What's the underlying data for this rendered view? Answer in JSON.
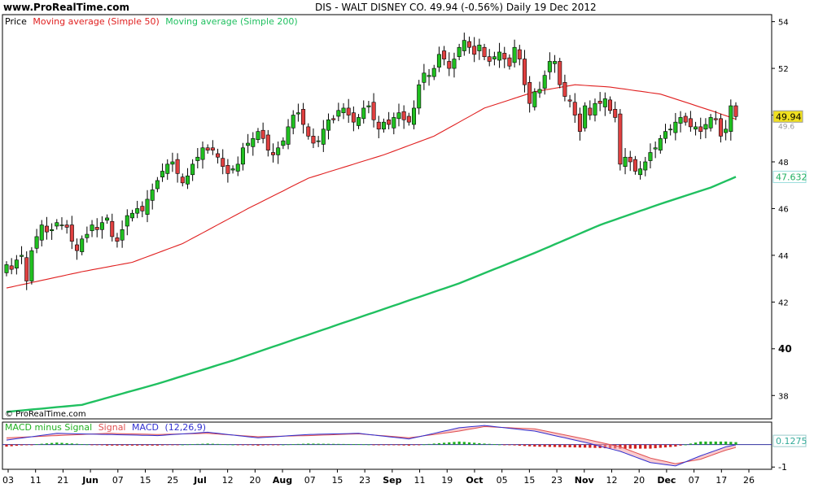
{
  "header": {
    "site": "www.ProRealTime.com",
    "title": "DIS - WALT DISNEY CO.     49.94  (-0.56%)     Daily  19 Dec 2012"
  },
  "watermark": "© ProRealTime.com",
  "colors": {
    "sma50": "#e02020",
    "sma200": "#20c060",
    "up_candle": "#20c020",
    "down_candle": "#e04040",
    "macd_line": "#3030d0",
    "signal_line": "#e05050",
    "hist_pos": "#20b020",
    "hist_neg": "#d02020",
    "last_price_bg": "#f0e020",
    "sma200_label_color": "#20b060"
  },
  "chart_data": [
    {
      "type": "candlestick",
      "legend": [
        {
          "name": "Price",
          "color": "#000000"
        },
        {
          "name": "Moving average (Simple 50)",
          "color": "#e02020"
        },
        {
          "name": "Moving average (Simple 200)",
          "color": "#20c060"
        }
      ],
      "ylim": [
        37,
        54.3
      ],
      "yticks": [
        38,
        40,
        42,
        44,
        46,
        48,
        50,
        52,
        54
      ],
      "last_price_label": "49.94",
      "sma200_label": "47.632",
      "sma50_label": "49.6",
      "x_tick_labels": [
        "03",
        "11",
        "21",
        "Jun",
        "07",
        "15",
        "25",
        "Jul",
        "12",
        "20",
        "Aug",
        "07",
        "15",
        "23",
        "Sep",
        "11",
        "19",
        "Oct",
        "05",
        "15",
        "23",
        "Nov",
        "12",
        "20",
        "Dec",
        "07",
        "17",
        "26"
      ],
      "closes": [
        43.6,
        43.4,
        43.8,
        44.0,
        42.9,
        44.2,
        44.8,
        45.3,
        45.0,
        45.1,
        45.4,
        45.3,
        45.2,
        44.6,
        44.2,
        44.7,
        44.9,
        45.3,
        45.1,
        45.4,
        45.6,
        44.8,
        44.6,
        45.1,
        45.7,
        45.8,
        46.0,
        45.9,
        46.4,
        46.8,
        47.2,
        47.6,
        47.9,
        48.0,
        47.5,
        47.1,
        47.4,
        47.9,
        48.2,
        48.6,
        48.5,
        48.5,
        48.2,
        47.8,
        47.5,
        47.7,
        47.9,
        48.6,
        48.8,
        49.0,
        49.3,
        49.0,
        48.5,
        48.3,
        48.6,
        48.9,
        49.5,
        50.0,
        50.1,
        49.6,
        49.1,
        48.8,
        48.9,
        49.4,
        49.8,
        49.8,
        50.2,
        50.3,
        50.0,
        49.7,
        49.9,
        50.3,
        50.4,
        49.8,
        49.4,
        49.7,
        49.6,
        49.9,
        50.1,
        49.8,
        49.7,
        50.3,
        51.3,
        51.8,
        51.7,
        52.0,
        52.6,
        52.4,
        52.0,
        52.4,
        52.9,
        53.2,
        52.9,
        52.6,
        53.0,
        52.5,
        52.3,
        52.5,
        52.7,
        52.4,
        52.1,
        52.9,
        52.4,
        51.3,
        50.5,
        51.0,
        51.1,
        51.7,
        52.3,
        52.3,
        51.3,
        50.8,
        50.6,
        50.0,
        49.3,
        50.4,
        50.0,
        50.5,
        50.5,
        50.7,
        50.2,
        49.9,
        47.9,
        48.2,
        48.0,
        47.6,
        47.7,
        48.0,
        48.4,
        48.6,
        49.0,
        49.3,
        49.4,
        49.7,
        49.9,
        49.7,
        49.5,
        49.5,
        49.3,
        49.6,
        49.9,
        49.8,
        49.1,
        49.4,
        50.4,
        49.94
      ],
      "sma50": [
        null,
        null,
        null,
        null,
        null,
        null,
        null,
        null,
        null,
        null,
        null,
        null,
        null,
        null,
        null,
        null,
        null,
        null,
        null,
        null,
        null,
        null,
        null,
        null,
        null,
        null,
        null,
        null,
        null,
        null,
        null,
        null,
        null,
        null,
        null,
        null,
        null,
        null,
        null,
        null,
        null,
        null,
        null,
        null,
        null,
        null,
        null,
        null,
        null,
        null,
        null,
        null,
        null,
        null,
        null,
        null,
        null,
        null,
        null,
        null,
        null,
        null,
        null,
        null,
        null,
        null,
        null,
        null,
        null,
        null,
        null,
        null,
        null,
        null,
        null,
        null,
        null,
        null,
        null,
        null,
        null,
        null,
        null,
        null,
        null,
        null,
        null,
        null,
        null,
        null,
        null,
        null,
        null,
        null,
        null,
        null,
        null,
        null,
        null,
        null,
        null,
        null,
        null,
        null,
        null,
        null,
        null,
        null,
        null,
        null,
        null,
        null,
        null,
        null,
        null,
        null,
        null,
        null,
        null,
        null,
        null,
        null,
        null,
        null,
        null,
        null,
        null,
        null,
        null,
        null,
        null,
        null,
        null,
        null,
        null,
        null,
        null,
        null,
        null,
        null,
        null,
        null,
        null,
        null,
        null,
        null,
        null,
        null
      ],
      "sma50_anchors": [
        [
          0,
          42.6
        ],
        [
          15,
          43.3
        ],
        [
          25,
          43.7
        ],
        [
          35,
          44.5
        ],
        [
          48,
          46.0
        ],
        [
          60,
          47.3
        ],
        [
          75,
          48.3
        ],
        [
          85,
          49.1
        ],
        [
          95,
          50.3
        ],
        [
          105,
          51.0
        ],
        [
          113,
          51.3
        ],
        [
          120,
          51.2
        ],
        [
          130,
          50.9
        ],
        [
          140,
          50.2
        ],
        [
          148,
          49.6
        ]
      ],
      "sma200_anchors": [
        [
          0,
          37.3
        ],
        [
          15,
          37.6
        ],
        [
          30,
          38.5
        ],
        [
          45,
          39.5
        ],
        [
          60,
          40.6
        ],
        [
          75,
          41.7
        ],
        [
          90,
          42.8
        ],
        [
          105,
          44.1
        ],
        [
          118,
          45.3
        ],
        [
          130,
          46.2
        ],
        [
          140,
          46.9
        ],
        [
          148,
          47.632
        ]
      ]
    },
    {
      "type": "bar",
      "legend": [
        {
          "name": "MACD minus Signal",
          "color": "#20b020"
        },
        {
          "name": "Signal",
          "color": "#e05050"
        },
        {
          "name": "MACD",
          "color": "#3030d0"
        },
        {
          "name": "(12,26,9)",
          "color": "#3030d0"
        }
      ],
      "ylim": [
        -1.1,
        1.0
      ],
      "yticks": [
        -1
      ],
      "last_value_label": "0.1275",
      "macd_anchors": [
        [
          0,
          0.2
        ],
        [
          10,
          0.5
        ],
        [
          20,
          0.45
        ],
        [
          30,
          0.4
        ],
        [
          40,
          0.55
        ],
        [
          50,
          0.3
        ],
        [
          60,
          0.45
        ],
        [
          70,
          0.5
        ],
        [
          80,
          0.25
        ],
        [
          90,
          0.75
        ],
        [
          95,
          0.85
        ],
        [
          105,
          0.6
        ],
        [
          115,
          0.1
        ],
        [
          122,
          -0.3
        ],
        [
          128,
          -0.8
        ],
        [
          133,
          -0.95
        ],
        [
          138,
          -0.5
        ],
        [
          143,
          -0.1
        ],
        [
          148,
          0.1275
        ]
      ],
      "signal_anchors": [
        [
          0,
          0.3
        ],
        [
          10,
          0.4
        ],
        [
          20,
          0.5
        ],
        [
          30,
          0.45
        ],
        [
          40,
          0.5
        ],
        [
          50,
          0.35
        ],
        [
          60,
          0.4
        ],
        [
          70,
          0.48
        ],
        [
          80,
          0.3
        ],
        [
          90,
          0.6
        ],
        [
          95,
          0.8
        ],
        [
          105,
          0.7
        ],
        [
          115,
          0.25
        ],
        [
          122,
          -0.1
        ],
        [
          128,
          -0.6
        ],
        [
          133,
          -0.85
        ],
        [
          138,
          -0.65
        ],
        [
          143,
          -0.25
        ],
        [
          148,
          0.05
        ]
      ]
    }
  ]
}
